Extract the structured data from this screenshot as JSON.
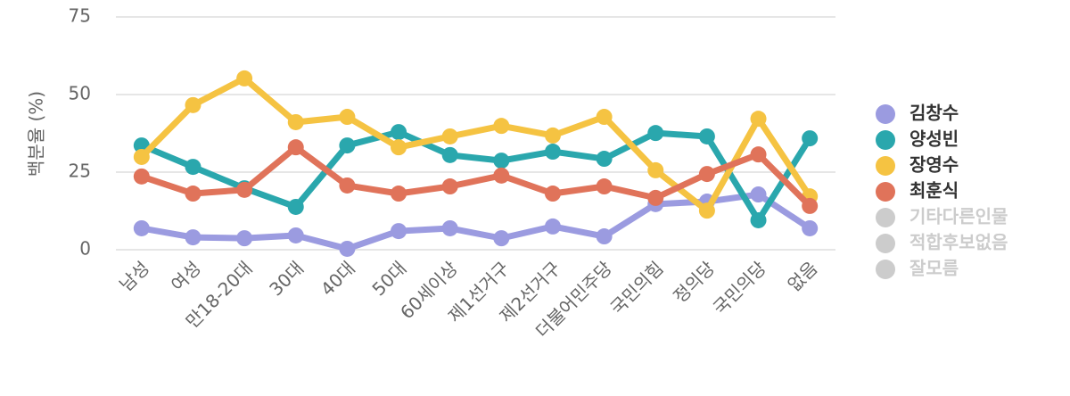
{
  "chart_data": {
    "type": "line",
    "ylabel": "백분율 (%)",
    "categories": [
      "남성",
      "여성",
      "만18-20대",
      "30대",
      "40대",
      "50대",
      "60세이상",
      "제1선거구",
      "제2선거구",
      "더불어민주당",
      "국민의힘",
      "정의당",
      "국민의당",
      "없음"
    ],
    "series": [
      {
        "name": "김창수",
        "color": "#9b9be0",
        "values": [
          6.9,
          4,
          3.7,
          4.6,
          0.3,
          6,
          6.9,
          3.7,
          7.5,
          4.3,
          14.7,
          15.5,
          17.8,
          6.9
        ]
      },
      {
        "name": "양성빈",
        "color": "#2aa7ad",
        "values": [
          33.6,
          26.7,
          19.8,
          13.8,
          33.6,
          37.9,
          30.5,
          28.7,
          31.6,
          29.3,
          37.6,
          36.5,
          9.5,
          35.9
        ]
      },
      {
        "name": "장영수",
        "color": "#f5c342",
        "values": [
          29.9,
          46.6,
          55.2,
          41.1,
          42.8,
          33,
          36.5,
          39.9,
          36.8,
          42.8,
          25.6,
          12.6,
          42.2,
          17.2
        ]
      },
      {
        "name": "최훈식",
        "color": "#e0735a",
        "values": [
          23.6,
          18.1,
          19.3,
          33,
          20.7,
          18.1,
          20.4,
          23.9,
          18.1,
          20.4,
          16.7,
          24.4,
          30.7,
          14.1
        ]
      },
      {
        "name": "기타다른인물",
        "color": "#cccccc",
        "hidden": true,
        "values": [
          null,
          null,
          null,
          null,
          null,
          null,
          null,
          null,
          null,
          null,
          null,
          null,
          null,
          null
        ]
      },
      {
        "name": "적합후보없음",
        "color": "#cccccc",
        "hidden": true,
        "values": [
          null,
          null,
          null,
          null,
          null,
          null,
          null,
          null,
          null,
          null,
          null,
          null,
          null,
          null
        ]
      },
      {
        "name": "잘모름",
        "color": "#cccccc",
        "hidden": true,
        "values": [
          null,
          null,
          null,
          null,
          null,
          null,
          null,
          null,
          null,
          null,
          null,
          null,
          null,
          null
        ]
      }
    ],
    "ylim": [
      0,
      75
    ],
    "yticks": [
      0,
      25,
      50,
      75
    ],
    "grid": true,
    "legend": "right"
  }
}
